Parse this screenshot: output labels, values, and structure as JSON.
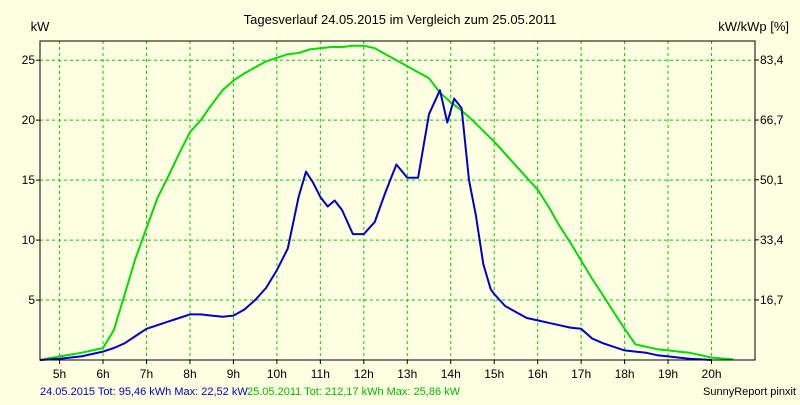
{
  "chart_data": {
    "type": "line",
    "title": "Tagesverlauf 24.05.2015 im Vergleich zum 25.05.2011",
    "ylabel_left": "kW",
    "ylabel_right": "kW/kWp [%]",
    "ylim_left": [
      0,
      26.6
    ],
    "ylim_right": [
      0,
      88.67
    ],
    "xlim": [
      4.55,
      21.0
    ],
    "x_ticks": [
      5,
      6,
      7,
      8,
      9,
      10,
      11,
      12,
      13,
      14,
      15,
      16,
      17,
      18,
      19,
      20
    ],
    "x_tick_labels": [
      "5h",
      "6h",
      "7h",
      "8h",
      "9h",
      "10h",
      "11h",
      "12h",
      "13h",
      "14h",
      "15h",
      "16h",
      "17h",
      "18h",
      "19h",
      "20h"
    ],
    "y_ticks_left": [
      5,
      10,
      15,
      20,
      25
    ],
    "y_tick_labels_left": [
      "5",
      "10",
      "15",
      "20",
      "25"
    ],
    "y_ticks_right": [
      16.7,
      33.4,
      50.1,
      66.7,
      83.4
    ],
    "y_tick_labels_right": [
      "16,7",
      "33,4",
      "50,1",
      "66,7",
      "83,4"
    ],
    "grid": true,
    "series": [
      {
        "name": "24.05.2015",
        "color": "#0000cc",
        "x": [
          4.55,
          5.0,
          5.5,
          6.0,
          6.25,
          6.5,
          6.75,
          7.0,
          7.25,
          7.5,
          7.75,
          8.0,
          8.25,
          8.5,
          8.75,
          9.0,
          9.25,
          9.5,
          9.75,
          10.0,
          10.25,
          10.5,
          10.67,
          10.83,
          11.0,
          11.17,
          11.33,
          11.5,
          11.75,
          12.0,
          12.25,
          12.5,
          12.75,
          13.0,
          13.25,
          13.5,
          13.75,
          13.92,
          14.08,
          14.25,
          14.42,
          14.58,
          14.75,
          14.92,
          15.0,
          15.25,
          15.5,
          15.75,
          16.0,
          16.25,
          16.5,
          16.75,
          17.0,
          17.25,
          17.5,
          17.75,
          18.0,
          18.25,
          18.5,
          18.75,
          19.0,
          19.25,
          19.5,
          20.0
        ],
        "y": [
          0,
          0.1,
          0.3,
          0.7,
          1.0,
          1.4,
          2.0,
          2.6,
          2.9,
          3.2,
          3.5,
          3.8,
          3.8,
          3.7,
          3.6,
          3.7,
          4.2,
          5.0,
          6.0,
          7.5,
          9.3,
          13.6,
          15.7,
          14.8,
          13.6,
          12.8,
          13.3,
          12.5,
          10.5,
          10.5,
          11.5,
          14.0,
          16.3,
          15.2,
          15.2,
          20.5,
          22.5,
          19.8,
          21.8,
          21.0,
          15.0,
          12.0,
          8.0,
          5.9,
          5.5,
          4.5,
          4.0,
          3.5,
          3.3,
          3.1,
          2.9,
          2.7,
          2.6,
          1.8,
          1.4,
          1.1,
          0.8,
          0.7,
          0.6,
          0.4,
          0.3,
          0.2,
          0.1,
          0.0
        ]
      },
      {
        "name": "25.05.2011",
        "color": "#00dd00",
        "x": [
          4.55,
          5.0,
          5.5,
          6.0,
          6.25,
          6.5,
          6.75,
          7.0,
          7.25,
          7.5,
          7.75,
          8.0,
          8.25,
          8.5,
          8.75,
          9.0,
          9.25,
          9.5,
          9.75,
          10.0,
          10.25,
          10.5,
          10.75,
          11.0,
          11.25,
          11.5,
          11.75,
          12.0,
          12.25,
          12.5,
          12.75,
          13.0,
          13.25,
          13.5,
          13.75,
          14.0,
          14.25,
          14.5,
          14.75,
          15.0,
          15.25,
          15.5,
          15.75,
          16.0,
          16.25,
          16.5,
          16.75,
          17.0,
          17.25,
          17.5,
          17.75,
          18.0,
          18.25,
          18.5,
          18.75,
          19.0,
          19.25,
          19.5,
          19.75,
          20.0,
          20.5
        ],
        "y": [
          0,
          0.3,
          0.6,
          1.0,
          2.5,
          5.5,
          8.5,
          11.0,
          13.5,
          15.3,
          17.2,
          19.0,
          20.0,
          21.3,
          22.5,
          23.3,
          23.9,
          24.4,
          24.9,
          25.2,
          25.5,
          25.6,
          25.9,
          26.0,
          26.1,
          26.1,
          26.2,
          26.2,
          26.0,
          25.5,
          25.0,
          24.5,
          24.0,
          23.5,
          22.3,
          21.5,
          20.8,
          20.0,
          19.1,
          18.2,
          17.2,
          16.2,
          15.2,
          14.2,
          12.8,
          11.2,
          9.8,
          8.3,
          6.8,
          5.4,
          4.0,
          2.6,
          1.3,
          1.1,
          0.9,
          0.8,
          0.7,
          0.6,
          0.4,
          0.2,
          0.05
        ]
      }
    ],
    "footer": {
      "series1_text": "24.05.2015 Tot: 95,46 kWh Max: 22,52 kW",
      "series2_text": "25.05.2011 Tot: 212,17 kWh Max: 25,86 kW",
      "credit": "SunnyReport pinxit"
    },
    "colors": {
      "background": "#ffffe1",
      "grid": "#00cc00",
      "axis": "#000000"
    }
  }
}
